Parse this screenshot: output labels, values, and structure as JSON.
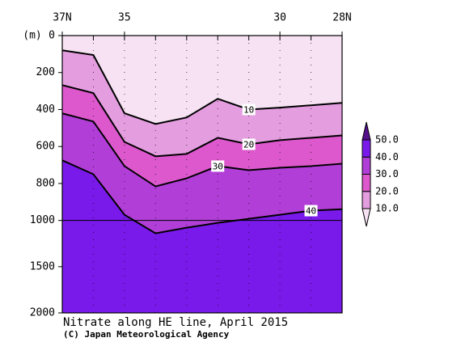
{
  "chart_data": {
    "type": "contour",
    "title": "Nitrate along HE line, April 2015",
    "subtitle": "(C) Japan Meteorological Agency",
    "y_label": "(m)",
    "x": [
      37,
      36,
      35,
      34,
      33,
      32,
      31,
      30,
      29,
      28
    ],
    "xlim": [
      37,
      28
    ],
    "xticks": [
      {
        "value": 37,
        "label": "37N"
      },
      35,
      30,
      {
        "value": 28,
        "label": "28N"
      }
    ],
    "ylim": [
      0,
      2000
    ],
    "yticks": [
      0,
      200,
      400,
      600,
      800,
      1000,
      1500,
      2000
    ],
    "y_break": 1000,
    "series": [
      {
        "name": "10",
        "color": "#000000",
        "values": [
          80,
          105,
          420,
          478,
          443,
          342,
          400,
          390,
          377,
          364
        ]
      },
      {
        "name": "20",
        "color": "#000000",
        "values": [
          268,
          311,
          575,
          653,
          640,
          553,
          588,
          566,
          553,
          540
        ]
      },
      {
        "name": "30",
        "color": "#000000",
        "values": [
          421,
          465,
          706,
          816,
          772,
          706,
          728,
          715,
          706,
          693
        ]
      },
      {
        "name": "40",
        "color": "#000000",
        "values": [
          675,
          750,
          969,
          1139,
          1078,
          1026,
          991,
          969,
          947,
          939
        ]
      }
    ],
    "colorbar": {
      "levels": [
        {
          "value": 10,
          "label": "10.0"
        },
        {
          "value": 20,
          "label": "20.0"
        },
        {
          "value": 30,
          "label": "30.0"
        },
        {
          "value": 40,
          "label": "40.0"
        },
        {
          "value": 50,
          "label": "50.0"
        }
      ],
      "colors": [
        "#f6e2f2",
        "#e49ee0",
        "#dc58cc",
        "#b23ed8",
        "#7a1aea",
        "#55108a"
      ]
    }
  }
}
